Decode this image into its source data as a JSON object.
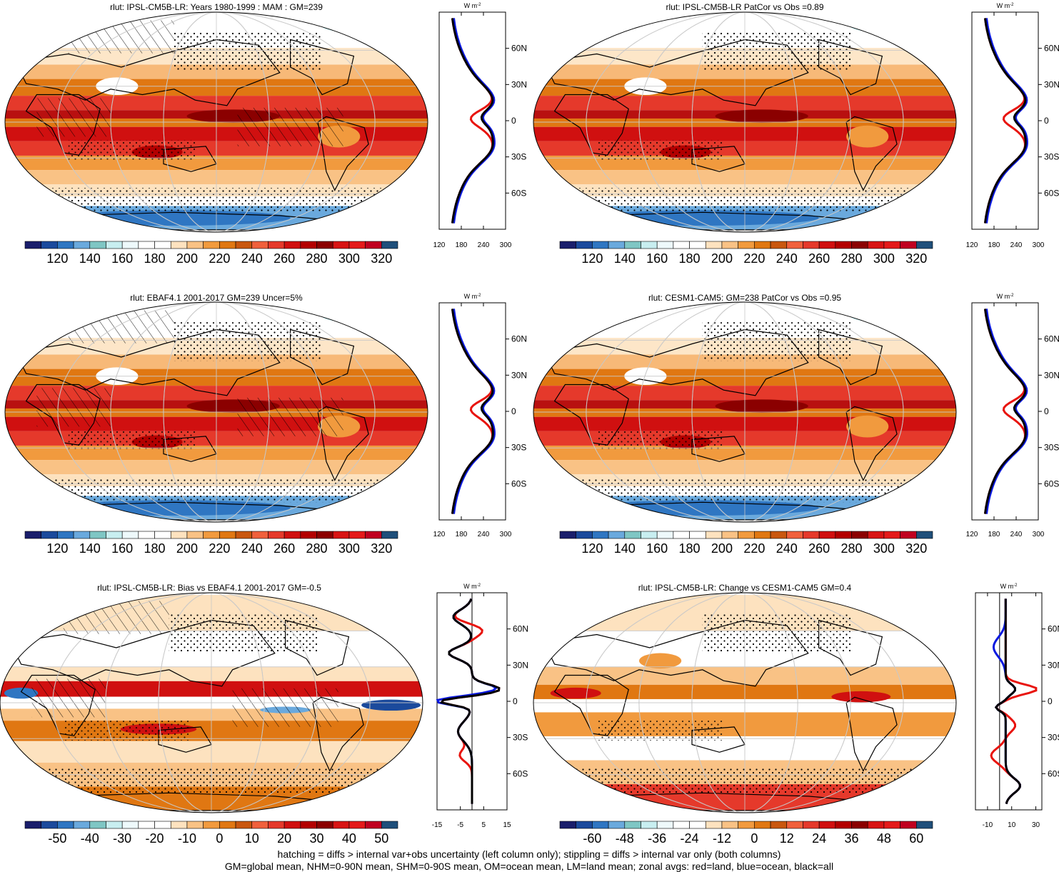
{
  "panels": [
    {
      "title": "rlut: IPSL-CM5B-LR: Years 1980-1999 : MAM : GM=239",
      "kind": "abs",
      "hatch": true,
      "stipple": true,
      "diff": false,
      "profile_variant": 0,
      "colorbar_labels": [
        "120",
        "140",
        "160",
        "180",
        "200",
        "220",
        "240",
        "260",
        "280",
        "300",
        "320"
      ],
      "profile_xlabels": [
        "120",
        "180",
        "240",
        "300"
      ],
      "profile_xrange": [
        120,
        300
      ]
    },
    {
      "title": "rlut: IPSL-CM5B-LR PatCor vs Obs =0.89",
      "kind": "abs",
      "hatch": false,
      "stipple": true,
      "diff": false,
      "profile_variant": 1,
      "colorbar_labels": [
        "120",
        "140",
        "160",
        "180",
        "200",
        "220",
        "240",
        "260",
        "280",
        "300",
        "320"
      ],
      "profile_xlabels": [
        "120",
        "180",
        "240",
        "300"
      ],
      "profile_xrange": [
        120,
        300
      ]
    },
    {
      "title": "rlut: EBAF4.1 2001-2017 GM=239 Uncer=5%",
      "kind": "abs",
      "hatch": true,
      "stipple": true,
      "diff": false,
      "profile_variant": 2,
      "colorbar_labels": [
        "120",
        "140",
        "160",
        "180",
        "200",
        "220",
        "240",
        "260",
        "280",
        "300",
        "320"
      ],
      "profile_xlabels": [
        "120",
        "180",
        "240",
        "300"
      ],
      "profile_xrange": [
        120,
        300
      ]
    },
    {
      "title": "rlut: CESM1-CAM5: GM=238 PatCor vs Obs =0.95",
      "kind": "abs",
      "hatch": false,
      "stipple": true,
      "diff": false,
      "profile_variant": 3,
      "colorbar_labels": [
        "120",
        "140",
        "160",
        "180",
        "200",
        "220",
        "240",
        "260",
        "280",
        "300",
        "320"
      ],
      "profile_xlabels": [
        "120",
        "180",
        "240",
        "300"
      ],
      "profile_xrange": [
        120,
        300
      ]
    },
    {
      "title": "rlut: IPSL-CM5B-LR: Bias vs EBAF4.1 2001-2017 GM=-0.5",
      "kind": "bias",
      "hatch": true,
      "stipple": true,
      "diff": true,
      "profile_variant": 4,
      "colorbar_labels": [
        "-50",
        "-40",
        "-30",
        "-20",
        "-10",
        "0",
        "10",
        "20",
        "30",
        "40",
        "50"
      ],
      "profile_xlabels": [
        "-15",
        "-5",
        "5",
        "15"
      ],
      "profile_xrange": [
        -15,
        15
      ]
    },
    {
      "title": "rlut: IPSL-CM5B-LR: Change vs CESM1-CAM5 GM=0.4",
      "kind": "change",
      "hatch": false,
      "stipple": true,
      "diff": true,
      "profile_variant": 5,
      "colorbar_labels": [
        "-60",
        "-48",
        "-36",
        "-24",
        "-12",
        "0",
        "12",
        "24",
        "36",
        "48",
        "60"
      ],
      "profile_xlabels": [
        "-10",
        "10",
        "30"
      ],
      "profile_xrange": [
        -20,
        35
      ]
    }
  ],
  "profile_unit": "W m",
  "profile_unit_sup": "-2",
  "lat_labels": [
    "60N",
    "30N",
    "0",
    "30S",
    "60S"
  ],
  "colors": {
    "scale": [
      "#1a1e6b",
      "#1b4a9c",
      "#2f76c2",
      "#6aa9dd",
      "#7fc6c4",
      "#c8eef0",
      "#eef9fb",
      "#ffffff",
      "#ffffff",
      "#fde2bf",
      "#f9c285",
      "#f19a3e",
      "#e07712",
      "#c9570f",
      "#f0603c",
      "#e5392b",
      "#d01010",
      "#b30000",
      "#8b0000",
      "#d81414",
      "#e41a1a",
      "#c00020",
      "#1f4f7a"
    ],
    "profile_land": "#e8140e",
    "profile_ocean": "#0a19e0",
    "profile_all": "#000000",
    "land_outline": "#000000",
    "grid": "#c8c8c8"
  },
  "footer": {
    "line1": "hatching = diffs > internal var+obs uncertainty (left column only); stippling = diffs > internal var only (both columns)",
    "line2": "GM=global mean, NHM=0-90N mean, SHM=0-90S mean, OM=ocean mean, LM=land mean; zonal avgs: red=land, blue=ocean, black=all"
  }
}
